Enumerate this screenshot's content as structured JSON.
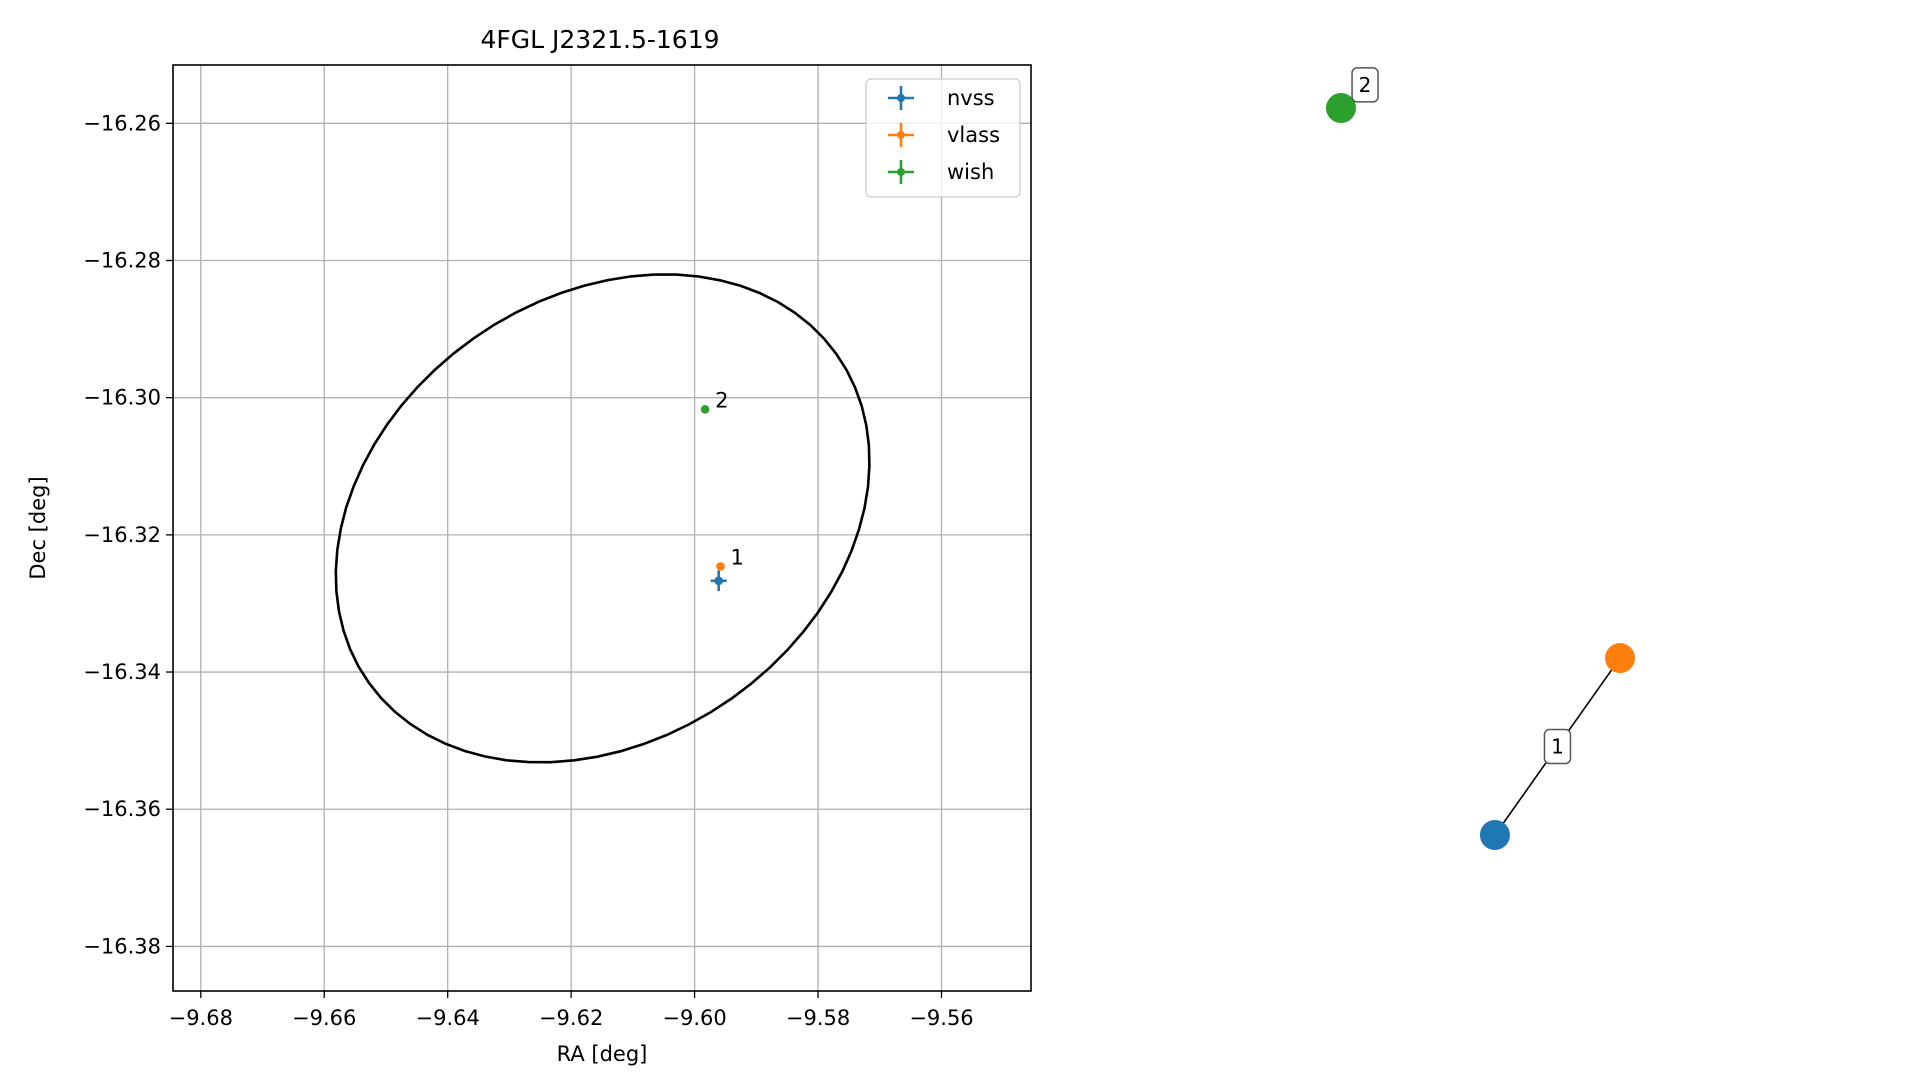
{
  "chart_data": [
    {
      "type": "scatter",
      "title": "4FGL J2321.5-1619",
      "xlabel": "RA [deg]",
      "ylabel": "Dec [deg]",
      "xlim": [
        -9.6845,
        -9.5455
      ],
      "ylim": [
        -16.3865,
        -16.2515
      ],
      "xticks": [
        -9.68,
        -9.66,
        -9.64,
        -9.62,
        -9.6,
        -9.58,
        -9.56
      ],
      "xtick_labels": [
        "−9.68",
        "−9.66",
        "−9.64",
        "−9.62",
        "−9.60",
        "−9.58",
        "−9.56"
      ],
      "yticks": [
        -16.26,
        -16.28,
        -16.3,
        -16.32,
        -16.34,
        -16.36,
        -16.38
      ],
      "ytick_labels": [
        "−16.26",
        "−16.28",
        "−16.30",
        "−16.32",
        "−16.34",
        "−16.36",
        "−16.38"
      ],
      "grid": true,
      "legend": "upper right",
      "series": [
        {
          "name": "nvss",
          "color": "#1f77b4",
          "points": [
            {
              "x": -9.5961,
              "y": -16.3267,
              "xerr": 0.0013,
              "yerr": 0.0015
            }
          ]
        },
        {
          "name": "vlass",
          "color": "#ff7f0e",
          "points": [
            {
              "x": -9.5958,
              "y": -16.3246,
              "xerr": 0.0001,
              "yerr": 0.0001
            }
          ]
        },
        {
          "name": "wish",
          "color": "#2ca02c",
          "points": [
            {
              "x": -9.5983,
              "y": -16.3017,
              "xerr": 0.0001,
              "yerr": 0.0001
            }
          ]
        }
      ],
      "annotations": [
        {
          "text": "1",
          "x": -9.5958,
          "y": -16.3246
        },
        {
          "text": "2",
          "x": -9.5983,
          "y": -16.3017
        }
      ],
      "ellipse": {
        "cx": -9.6149,
        "cy": -16.3176,
        "a": 0.04513,
        "b": 0.03313,
        "angle_deg": 25,
        "color": "#000000"
      }
    },
    {
      "type": "network",
      "nodes": [
        {
          "id": "wish",
          "color": "#2ca02c",
          "x": -0.6,
          "y": 0.89
        },
        {
          "id": "vlass",
          "color": "#ff7f0e",
          "x": 0.56,
          "y": -0.54
        },
        {
          "id": "nvss",
          "color": "#1f77b4",
          "x": 0.04,
          "y": -1.0
        }
      ],
      "edges": [
        {
          "source": "nvss",
          "target": "vlass"
        }
      ],
      "group_labels": [
        {
          "text": "1",
          "x": 0.3,
          "y": -0.77
        },
        {
          "text": "2",
          "x": -0.5,
          "y": 0.95
        }
      ]
    }
  ]
}
